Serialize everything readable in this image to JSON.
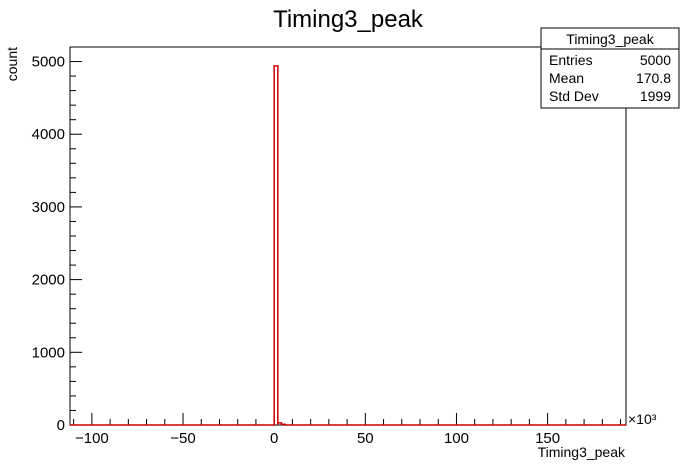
{
  "chart_data": {
    "type": "bar",
    "title": "Timing3_peak",
    "xlabel": "Timing3_peak",
    "ylabel": "count",
    "x_multiplier_label": "×10³",
    "xlim": [
      -112,
      193
    ],
    "ylim": [
      0,
      5200
    ],
    "x_ticks": [
      -100,
      -50,
      0,
      50,
      100,
      150
    ],
    "y_ticks": [
      0,
      1000,
      2000,
      3000,
      4000,
      5000
    ],
    "x_tick_labels": [
      "−100",
      "−50",
      "0",
      "50",
      "100",
      "150"
    ],
    "y_tick_labels": [
      "0",
      "1000",
      "2000",
      "3000",
      "4000",
      "5000"
    ],
    "bin_width": 2,
    "bins": [
      {
        "x0": 0,
        "x1": 2,
        "value": 4940
      },
      {
        "x0": 2,
        "x1": 4,
        "value": 30
      },
      {
        "x0": 4,
        "x1": 6,
        "value": 10
      }
    ],
    "line_color": "#cc0000",
    "grid": false,
    "legend": "none",
    "stats_box": {
      "title": "Timing3_peak",
      "entries_label": "Entries",
      "entries_value": "5000",
      "mean_label": "Mean",
      "mean_value": "170.8",
      "std_label": "Std Dev",
      "std_value": "1999"
    }
  }
}
